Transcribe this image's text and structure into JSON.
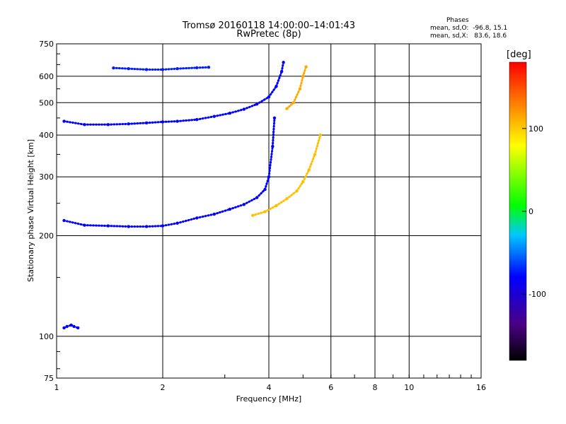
{
  "header": {
    "title_line1": "Tromsø 20160118 14:00:00–14:01:43",
    "title_line2": "RwPretec (8p)"
  },
  "phases": {
    "heading": "Phases",
    "o_mode": "mean, sd,O:  -96.8, 15.1",
    "x_mode": "mean, sd,X:   83.6, 18.6"
  },
  "colorbar": {
    "unit": "[deg]",
    "range": [
      -180,
      180
    ],
    "ticks": [
      100,
      0,
      -100
    ],
    "tick_labels": [
      "100",
      "0",
      "-100"
    ]
  },
  "chart_data": {
    "type": "scatter",
    "title": "Tromsø 20160118 14:00:00–14:01:43",
    "subtitle": "RwPretec (8p)",
    "xlabel": "Frequency [MHz]",
    "ylabel": "Stationary phase Virtual Height [km]",
    "xscale": "log",
    "yscale": "log",
    "xlim": [
      1,
      16
    ],
    "ylim": [
      75,
      750
    ],
    "xticks": [
      1,
      2,
      4,
      6,
      8,
      10,
      16
    ],
    "yticks": [
      75,
      100,
      200,
      300,
      400,
      500,
      600,
      750
    ],
    "grid": true,
    "color_encoding": "phase (deg)",
    "traces": [
      {
        "mode": "O",
        "phase_deg": -100,
        "x": [
          1.05,
          1.2,
          1.4,
          1.6,
          1.8,
          2.0,
          2.2,
          2.5,
          2.8,
          3.1,
          3.4,
          3.7,
          3.9,
          4.0,
          4.1,
          4.15
        ],
        "y": [
          222,
          215,
          214,
          213,
          213,
          214,
          218,
          226,
          232,
          240,
          248,
          260,
          275,
          300,
          370,
          450
        ]
      },
      {
        "mode": "O",
        "phase_deg": -100,
        "x": [
          1.05,
          1.2,
          1.4,
          1.6,
          1.8,
          2.0,
          2.2,
          2.5,
          2.8,
          3.1,
          3.4,
          3.7,
          4.0,
          4.2,
          4.35,
          4.4
        ],
        "y": [
          440,
          430,
          430,
          432,
          435,
          438,
          440,
          445,
          455,
          465,
          478,
          495,
          520,
          560,
          620,
          660
        ]
      },
      {
        "mode": "X",
        "phase_deg": 100,
        "x": [
          3.6,
          3.9,
          4.2,
          4.5,
          4.8,
          5.0,
          5.2,
          5.4,
          5.6
        ],
        "y": [
          230,
          236,
          246,
          258,
          272,
          290,
          315,
          350,
          400
        ]
      },
      {
        "mode": "X",
        "phase_deg": 110,
        "x": [
          4.5,
          4.7,
          4.9,
          5.0,
          5.1
        ],
        "y": [
          480,
          500,
          550,
          600,
          640
        ]
      },
      {
        "mode": "O",
        "phase_deg": -90,
        "x": [
          1.45,
          1.6,
          1.8,
          2.0,
          2.2,
          2.5,
          2.7
        ],
        "y": [
          635,
          632,
          628,
          628,
          632,
          636,
          638
        ]
      },
      {
        "mode": "O",
        "phase_deg": -100,
        "x": [
          1.05,
          1.07,
          1.1,
          1.12,
          1.15
        ],
        "y": [
          106,
          107,
          108,
          107,
          106
        ]
      }
    ]
  }
}
